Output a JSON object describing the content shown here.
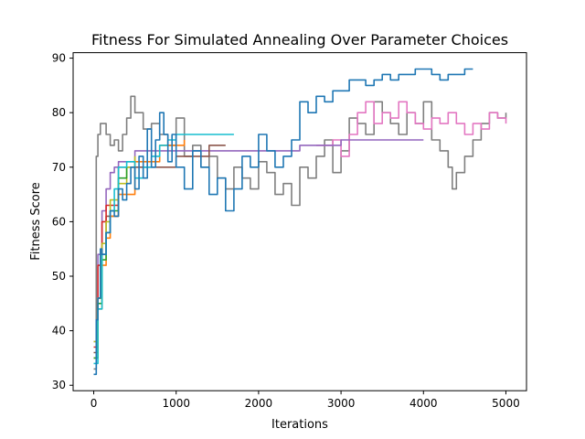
{
  "chart_data": {
    "type": "line",
    "title": "Fitness For Simulated Annealing Over Parameter Choices",
    "xlabel": "Iterations",
    "ylabel": "Fitness Score",
    "xlim": [
      -250,
      5250
    ],
    "ylim": [
      29,
      91
    ],
    "xticks": [
      0,
      1000,
      2000,
      3000,
      4000,
      5000
    ],
    "yticks": [
      30,
      40,
      50,
      60,
      70,
      80,
      90
    ],
    "grid": false,
    "legend": "none",
    "series": [
      {
        "color": "#7f7f7f",
        "x": [
          0,
          30,
          50,
          80,
          100,
          150,
          200,
          250,
          300,
          350,
          400,
          450,
          500,
          600,
          700,
          800,
          900,
          1000,
          1100,
          1200,
          1300,
          1400,
          1500,
          1600,
          1700,
          1800,
          1900,
          2000,
          2100,
          2200,
          2300,
          2400,
          2500,
          2600,
          2700,
          2800,
          2900,
          3000,
          3100,
          3200,
          3300,
          3400,
          3500,
          3600,
          3700,
          3800,
          3900,
          4000,
          4100,
          4200,
          4300,
          4350,
          4400,
          4500,
          4600,
          4700,
          4800,
          4900,
          5000
        ],
        "y": [
          33,
          72,
          76,
          78,
          78,
          76,
          74,
          75,
          73,
          76,
          79,
          83,
          80,
          77,
          78,
          76,
          74,
          79,
          72,
          74,
          70,
          72,
          68,
          66,
          70,
          68,
          66,
          71,
          69,
          65,
          67,
          63,
          70,
          68,
          72,
          75,
          69,
          73,
          79,
          78,
          76,
          82,
          80,
          78,
          76,
          80,
          78,
          82,
          75,
          73,
          70,
          66,
          69,
          72,
          75,
          78,
          80,
          79,
          80
        ]
      },
      {
        "color": "#e377c2",
        "x": [
          2700,
          2900,
          3000,
          3100,
          3200,
          3300,
          3400,
          3500,
          3600,
          3700,
          3800,
          3900,
          4000,
          4100,
          4200,
          4300,
          4400,
          4500,
          4600,
          4700,
          4800,
          4900,
          5000
        ],
        "y": [
          74,
          75,
          72,
          76,
          80,
          82,
          78,
          80,
          79,
          82,
          80,
          78,
          77,
          79,
          78,
          80,
          78,
          76,
          78,
          77,
          80,
          79,
          78
        ]
      },
      {
        "color": "#9467bd",
        "x": [
          0,
          50,
          100,
          150,
          200,
          250,
          300,
          500,
          1000,
          1500,
          2000,
          2500,
          3000,
          3500,
          4000
        ],
        "y": [
          38,
          54,
          62,
          66,
          69,
          70,
          71,
          73,
          73,
          73,
          73,
          74,
          75,
          75,
          75
        ]
      },
      {
        "color": "#8c564b",
        "x": [
          0,
          50,
          100,
          150,
          200,
          300,
          400,
          600,
          800,
          1000,
          1200,
          1400,
          1600
        ],
        "y": [
          36,
          46,
          54,
          61,
          61,
          70,
          70,
          70,
          70,
          72,
          72,
          74,
          74
        ]
      },
      {
        "color": "#d62728",
        "x": [
          0,
          50,
          100,
          150,
          200,
          300
        ],
        "y": [
          37,
          52,
          60,
          63,
          63,
          64
        ]
      },
      {
        "color": "#bcbd22",
        "x": [
          0,
          50,
          100,
          150,
          200,
          300,
          400,
          500
        ],
        "y": [
          38,
          46,
          56,
          60,
          64,
          67,
          70,
          72
        ]
      },
      {
        "color": "#ff7f0e",
        "x": [
          0,
          50,
          100,
          150,
          200,
          300,
          500,
          800,
          1100
        ],
        "y": [
          35,
          44,
          52,
          57,
          61,
          65,
          71,
          74,
          75
        ]
      },
      {
        "color": "#2ca02c",
        "x": [
          0,
          50,
          100,
          150,
          200,
          300,
          400
        ],
        "y": [
          35,
          45,
          53,
          58,
          62,
          68,
          70
        ]
      },
      {
        "color": "#17becf",
        "x": [
          0,
          50,
          100,
          150,
          200,
          250,
          300,
          400,
          500,
          600,
          700,
          800,
          900,
          1000,
          1200,
          1400,
          1700
        ],
        "y": [
          34,
          44,
          54,
          58,
          62,
          66,
          70,
          71,
          68,
          70,
          72,
          74,
          75,
          76,
          76,
          76,
          76
        ]
      },
      {
        "color": "#1f77b4",
        "x": [
          0,
          30,
          50,
          80,
          100,
          150,
          200,
          250,
          300,
          350,
          400,
          450,
          500,
          550,
          600,
          650,
          700,
          750,
          800,
          850,
          900,
          950,
          1000,
          1100,
          1200,
          1300,
          1400,
          1500,
          1600,
          1700,
          1800,
          1900,
          2000,
          2100,
          2200,
          2300,
          2400,
          2500,
          2600,
          2700,
          2800,
          2900,
          3000,
          3100,
          3200,
          3300,
          3400,
          3500,
          3600,
          3700,
          3800,
          3900,
          4000,
          4100,
          4200,
          4300,
          4400,
          4500,
          4600
        ],
        "y": [
          32,
          42,
          46,
          55,
          54,
          58,
          62,
          61,
          66,
          64,
          67,
          70,
          66,
          72,
          68,
          77,
          70,
          75,
          80,
          76,
          71,
          76,
          70,
          66,
          73,
          70,
          65,
          68,
          62,
          66,
          72,
          70,
          76,
          73,
          70,
          72,
          75,
          82,
          80,
          83,
          82,
          84,
          84,
          86,
          86,
          85,
          86,
          87,
          86,
          87,
          87,
          88,
          88,
          87,
          86,
          87,
          87,
          88,
          88
        ]
      }
    ]
  }
}
